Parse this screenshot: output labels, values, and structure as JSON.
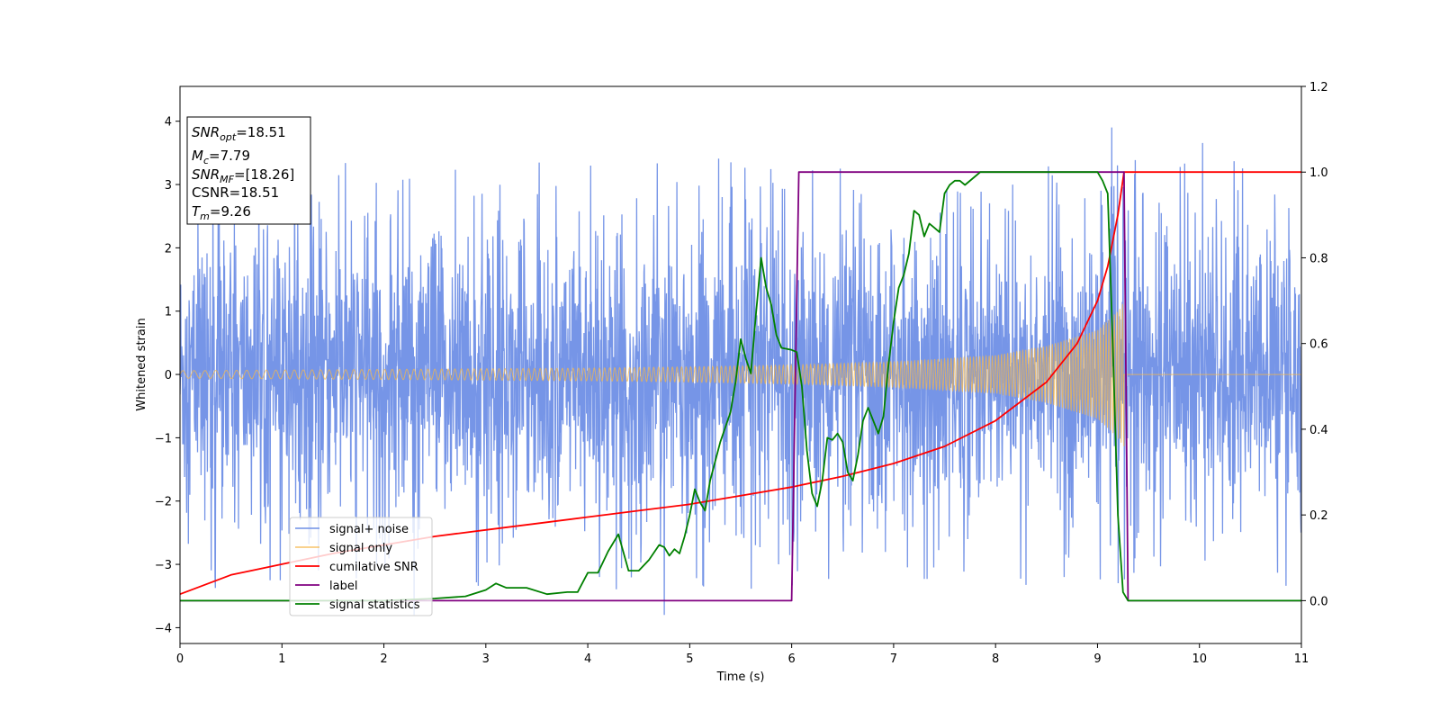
{
  "chart_data": {
    "type": "line",
    "title": "",
    "xlabel": "Time (s)",
    "ylabel": "Whitened strain",
    "y2label": "",
    "xlim": [
      0,
      11
    ],
    "ylim": [
      -4.25,
      4.55
    ],
    "y2lim": [
      -0.1,
      1.2
    ],
    "xticks": [
      0,
      1,
      2,
      3,
      4,
      5,
      6,
      7,
      8,
      9,
      10,
      11
    ],
    "yticks": [
      -4,
      -3,
      -2,
      -1,
      0,
      1,
      2,
      3,
      4
    ],
    "y2ticks": [
      0.0,
      0.2,
      0.4,
      0.6,
      0.8,
      1.0,
      1.2
    ],
    "y2tick_labels": [
      "0.0",
      "0.2",
      "0.4",
      "0.6",
      "0.8",
      "1.0",
      "1.2"
    ],
    "grid": false,
    "legend_position": "lower-left",
    "colors": {
      "signal_noise": "#6f8fe6",
      "signal_only": "#f5b74a",
      "cumulative_snr": "#ff0000",
      "label": "#800080",
      "signal_statistics": "#008000"
    },
    "annotation": [
      {
        "base": "SNR",
        "sub": "opt",
        "value": "=18.51"
      },
      {
        "base": "M",
        "sub": "c",
        "value": "=7.79"
      },
      {
        "base": "SNR",
        "sub": "MF",
        "value": "=[18.26]"
      },
      {
        "base": "CSNR",
        "sub": "",
        "value": "=18.51"
      },
      {
        "base": "T",
        "sub": "m",
        "value": "=9.26"
      }
    ],
    "series": [
      {
        "name": "signal+ noise",
        "axis": "left",
        "kind": "noise_band",
        "core_amplitude": 1.2,
        "peak_range": [
          -3.8,
          4.15
        ],
        "t_range": [
          0,
          11
        ]
      },
      {
        "name": "signal only",
        "axis": "left",
        "kind": "chirp_envelope",
        "envelope_t": [
          0,
          1,
          2,
          3,
          4,
          5,
          6,
          7,
          8,
          8.5,
          9,
          9.2,
          9.26
        ],
        "envelope_amp": [
          0.06,
          0.07,
          0.08,
          0.09,
          0.1,
          0.12,
          0.15,
          0.2,
          0.3,
          0.45,
          0.7,
          1.0,
          1.15
        ],
        "merger_time": 9.26
      },
      {
        "name": "cumilative SNR",
        "axis": "right",
        "x": [
          0,
          0.5,
          1,
          1.5,
          2,
          2.5,
          3,
          3.5,
          4,
          4.5,
          5,
          5.5,
          6,
          6.5,
          7,
          7.5,
          8,
          8.5,
          8.8,
          9.0,
          9.1,
          9.2,
          9.26,
          9.3,
          10,
          11
        ],
        "y": [
          0.015,
          0.06,
          0.085,
          0.11,
          0.13,
          0.15,
          0.165,
          0.18,
          0.195,
          0.21,
          0.225,
          0.245,
          0.265,
          0.29,
          0.32,
          0.36,
          0.42,
          0.51,
          0.6,
          0.7,
          0.78,
          0.9,
          1.0,
          1.0,
          1.0,
          1.0
        ]
      },
      {
        "name": "label",
        "axis": "right",
        "x": [
          0,
          6.0,
          6.07,
          9.26,
          9.3,
          11
        ],
        "y": [
          0,
          0,
          1,
          1,
          0,
          0
        ]
      },
      {
        "name": "signal statistics",
        "axis": "right",
        "x": [
          0,
          1,
          2,
          2.5,
          2.8,
          3.0,
          3.1,
          3.2,
          3.4,
          3.6,
          3.8,
          3.9,
          4.0,
          4.1,
          4.2,
          4.3,
          4.4,
          4.5,
          4.6,
          4.7,
          4.75,
          4.8,
          4.85,
          4.9,
          4.95,
          5.0,
          5.05,
          5.1,
          5.15,
          5.2,
          5.3,
          5.4,
          5.45,
          5.5,
          5.55,
          5.6,
          5.65,
          5.7,
          5.75,
          5.8,
          5.85,
          5.9,
          6.0,
          6.05,
          6.1,
          6.15,
          6.2,
          6.25,
          6.3,
          6.35,
          6.4,
          6.45,
          6.5,
          6.55,
          6.6,
          6.65,
          6.7,
          6.75,
          6.8,
          6.85,
          6.9,
          6.95,
          7.0,
          7.05,
          7.1,
          7.15,
          7.2,
          7.25,
          7.3,
          7.35,
          7.4,
          7.45,
          7.5,
          7.55,
          7.6,
          7.65,
          7.7,
          7.8,
          7.85,
          7.9,
          7.95,
          8.0,
          8.5,
          8.8,
          9.0,
          9.05,
          9.1,
          9.15,
          9.2,
          9.25,
          9.3,
          9.4,
          10,
          11
        ],
        "y": [
          0.0,
          0.0,
          0.0,
          0.005,
          0.01,
          0.025,
          0.04,
          0.03,
          0.03,
          0.015,
          0.02,
          0.02,
          0.065,
          0.065,
          0.115,
          0.155,
          0.07,
          0.07,
          0.095,
          0.13,
          0.125,
          0.105,
          0.12,
          0.11,
          0.15,
          0.2,
          0.26,
          0.23,
          0.21,
          0.28,
          0.37,
          0.44,
          0.51,
          0.61,
          0.565,
          0.53,
          0.67,
          0.8,
          0.73,
          0.69,
          0.62,
          0.59,
          0.585,
          0.58,
          0.5,
          0.35,
          0.25,
          0.22,
          0.28,
          0.38,
          0.375,
          0.39,
          0.37,
          0.3,
          0.28,
          0.34,
          0.42,
          0.45,
          0.42,
          0.39,
          0.43,
          0.55,
          0.65,
          0.73,
          0.76,
          0.81,
          0.91,
          0.9,
          0.85,
          0.88,
          0.87,
          0.86,
          0.95,
          0.97,
          0.98,
          0.98,
          0.97,
          0.99,
          1.0,
          1.0,
          1.0,
          1.0,
          1.0,
          1.0,
          1.0,
          0.98,
          0.95,
          0.6,
          0.2,
          0.02,
          0.0,
          0.0,
          0.0,
          0.0
        ]
      }
    ]
  }
}
